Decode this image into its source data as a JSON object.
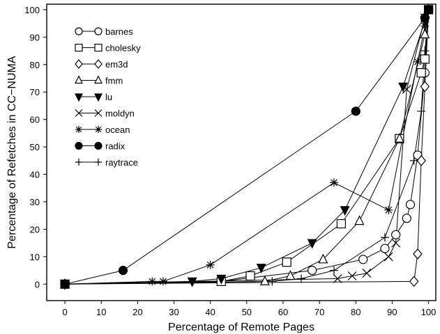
{
  "chart_data": {
    "type": "line",
    "xlabel": "Percentage of Remote Pages",
    "ylabel": "Percentage of Refetches in CC−NUMA",
    "xlim": [
      -5,
      102
    ],
    "ylim": [
      -6,
      102
    ],
    "xticks": [
      0,
      10,
      20,
      30,
      40,
      50,
      60,
      70,
      80,
      90,
      100
    ],
    "yticks": [
      0,
      10,
      20,
      30,
      40,
      50,
      60,
      70,
      80,
      90,
      100
    ],
    "grid": false,
    "legend_position": "top-left",
    "series": [
      {
        "name": "barnes",
        "marker": "circle-open",
        "x": [
          0,
          43,
          68,
          82,
          88,
          91,
          94,
          95,
          97,
          99,
          100
        ],
        "y": [
          0,
          1,
          5,
          9,
          13,
          18,
          24,
          29,
          47,
          77,
          100
        ]
      },
      {
        "name": "cholesky",
        "marker": "square-open",
        "x": [
          0,
          43,
          51,
          61,
          76,
          92,
          98,
          99,
          100
        ],
        "y": [
          0,
          1,
          3,
          8,
          22,
          53,
          77,
          82,
          100
        ]
      },
      {
        "name": "em3d",
        "marker": "diamond-open",
        "x": [
          0,
          96,
          97,
          98,
          99,
          100
        ],
        "y": [
          0,
          1,
          11,
          45,
          72,
          100
        ]
      },
      {
        "name": "fmm",
        "marker": "triangle-up-open",
        "x": [
          0,
          55,
          62,
          71,
          81,
          92,
          99,
          100
        ],
        "y": [
          0,
          1,
          3,
          9,
          23,
          53,
          91,
          100
        ]
      },
      {
        "name": "lu",
        "marker": "triangle-down-filled",
        "x": [
          0,
          35,
          43,
          54,
          68,
          77,
          93,
          99,
          100
        ],
        "y": [
          0,
          1,
          2,
          6,
          15,
          27,
          72,
          96,
          100
        ]
      },
      {
        "name": "moldyn",
        "marker": "x",
        "x": [
          0,
          75,
          79,
          83,
          89,
          91,
          94,
          99,
          100
        ],
        "y": [
          0,
          2,
          3,
          4,
          10,
          15,
          71,
          97,
          100
        ]
      },
      {
        "name": "ocean",
        "marker": "asterisk",
        "x": [
          0,
          24,
          27,
          40,
          74,
          89,
          97,
          99,
          100
        ],
        "y": [
          0,
          1,
          1,
          7,
          37,
          27,
          81,
          94,
          100
        ]
      },
      {
        "name": "radix",
        "marker": "circle-filled",
        "x": [
          0,
          16,
          80,
          99,
          100
        ],
        "y": [
          0,
          5,
          63,
          97,
          100
        ]
      },
      {
        "name": "raytrace",
        "marker": "plus",
        "x": [
          0,
          57,
          65,
          74,
          88,
          96,
          98,
          99,
          100
        ],
        "y": [
          0,
          1,
          2,
          5,
          17,
          45,
          63,
          85,
          100
        ]
      }
    ]
  }
}
